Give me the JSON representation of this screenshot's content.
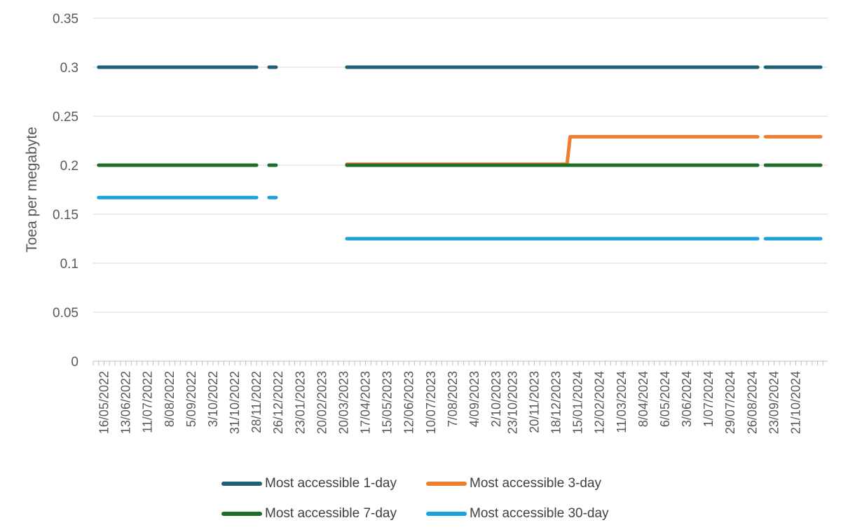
{
  "chart_data": {
    "type": "line",
    "ylabel": "Toea per megabyte",
    "ylim": [
      0,
      0.35
    ],
    "yticks": [
      "0",
      "0.05",
      "0.1",
      "0.15",
      "0.2",
      "0.25",
      "0.3",
      "0.35"
    ],
    "xlim": [
      "2022-05-02",
      "2024-12-01"
    ],
    "xticks": [
      "16/05/2022",
      "13/06/2022",
      "11/07/2022",
      "8/08/2022",
      "5/09/2022",
      "3/10/2022",
      "31/10/2022",
      "28/11/2022",
      "26/12/2022",
      "23/01/2023",
      "20/02/2023",
      "20/03/2023",
      "17/04/2023",
      "15/05/2023",
      "12/06/2023",
      "10/07/2023",
      "7/08/2023",
      "4/09/2023",
      "2/10/2023",
      "23/10/2023",
      "20/11/2023",
      "18/12/2023",
      "15/01/2024",
      "12/02/2024",
      "11/03/2024",
      "8/04/2024",
      "6/05/2024",
      "3/06/2024",
      "1/07/2024",
      "29/07/2024",
      "26/08/2024",
      "23/09/2024",
      "21/10/2024"
    ],
    "legend_position": "bottom",
    "series": [
      {
        "name": "Most accessible 1-day",
        "color": "#1f5f7a",
        "segments": [
          [
            [
              "2022-05-09",
              0.3
            ],
            [
              "2022-11-28",
              0.3
            ]
          ],
          [
            [
              "2022-12-14",
              0.3
            ],
            [
              "2022-12-23",
              0.3
            ]
          ],
          [
            [
              "2023-03-24",
              0.3
            ],
            [
              "2024-09-02",
              0.3
            ]
          ],
          [
            [
              "2024-09-12",
              0.3
            ],
            [
              "2024-11-22",
              0.3
            ]
          ]
        ]
      },
      {
        "name": "Most accessible 3-day",
        "color": "#ed7d31",
        "segments": [
          [
            [
              "2023-03-24",
              0.201
            ],
            [
              "2024-01-01",
              0.201
            ],
            [
              "2024-01-05",
              0.229
            ],
            [
              "2024-09-02",
              0.229
            ]
          ],
          [
            [
              "2024-09-12",
              0.229
            ],
            [
              "2024-11-22",
              0.229
            ]
          ]
        ]
      },
      {
        "name": "Most accessible 7-day",
        "color": "#1e6e2a",
        "segments": [
          [
            [
              "2022-05-09",
              0.2
            ],
            [
              "2022-11-28",
              0.2
            ]
          ],
          [
            [
              "2022-12-14",
              0.2
            ],
            [
              "2022-12-23",
              0.2
            ]
          ],
          [
            [
              "2023-03-24",
              0.2
            ],
            [
              "2024-09-02",
              0.2
            ]
          ],
          [
            [
              "2024-09-12",
              0.2
            ],
            [
              "2024-11-22",
              0.2
            ]
          ]
        ]
      },
      {
        "name": "Most accessible 30-day",
        "color": "#1da1db",
        "segments": [
          [
            [
              "2022-05-09",
              0.167
            ],
            [
              "2022-11-28",
              0.167
            ]
          ],
          [
            [
              "2022-12-14",
              0.167
            ],
            [
              "2022-12-23",
              0.167
            ]
          ],
          [
            [
              "2023-03-24",
              0.125
            ],
            [
              "2024-09-02",
              0.125
            ]
          ],
          [
            [
              "2024-09-12",
              0.125
            ],
            [
              "2024-11-22",
              0.125
            ]
          ]
        ]
      }
    ]
  }
}
